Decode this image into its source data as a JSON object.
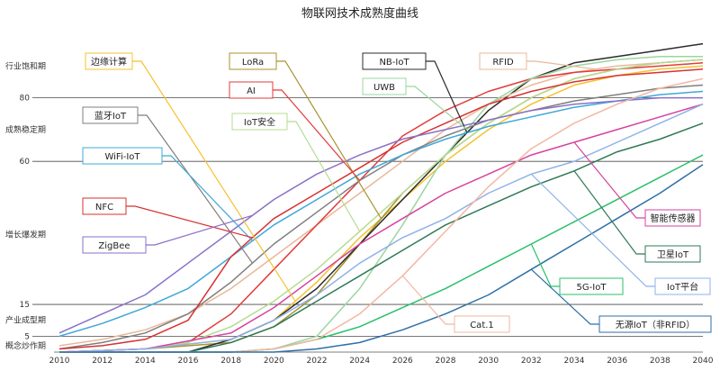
{
  "chart_data": {
    "type": "line",
    "title": "物联网技术成熟度曲线",
    "x_ticks": [
      "2010",
      "2012",
      "2014",
      "2016",
      "2018",
      "2020",
      "2022",
      "2024",
      "2026",
      "2028",
      "2030",
      "2032",
      "2034",
      "2036",
      "2038",
      "2040"
    ],
    "xlim": [
      2010,
      2040
    ],
    "ylim": [
      0,
      100
    ],
    "y_ticks": [
      5,
      15,
      60,
      80
    ],
    "grid": "horizontal",
    "stage_labels": [
      {
        "text": "行业饱和期",
        "y": 90
      },
      {
        "text": "成熟稳定期",
        "y": 70
      },
      {
        "text": "增长爆发期",
        "y": 37
      },
      {
        "text": "产业成型期",
        "y": 10
      },
      {
        "text": "概念炒作期",
        "y": 2
      }
    ],
    "series": [
      {
        "name": "边缘计算",
        "color": "#f5c22f",
        "label_pos": "upper-left",
        "points": [
          [
            2010,
            0
          ],
          [
            2014,
            1
          ],
          [
            2018,
            4
          ],
          [
            2020,
            10
          ],
          [
            2022,
            22
          ],
          [
            2024,
            36
          ],
          [
            2026,
            48
          ],
          [
            2028,
            60
          ],
          [
            2030,
            70
          ],
          [
            2032,
            78
          ],
          [
            2034,
            84
          ],
          [
            2036,
            87
          ],
          [
            2038,
            89
          ],
          [
            2040,
            90
          ]
        ]
      },
      {
        "name": "LoRa",
        "color": "#a8922e",
        "label_pos": "upper-mid",
        "points": [
          [
            2010,
            0
          ],
          [
            2014,
            1
          ],
          [
            2018,
            3
          ],
          [
            2020,
            8
          ],
          [
            2022,
            18
          ],
          [
            2024,
            34
          ],
          [
            2026,
            50
          ],
          [
            2028,
            62
          ],
          [
            2030,
            72
          ],
          [
            2032,
            80
          ],
          [
            2034,
            86
          ],
          [
            2036,
            89
          ],
          [
            2038,
            91
          ],
          [
            2040,
            92
          ]
        ]
      },
      {
        "name": "NB-IoT",
        "color": "#2b2b2b",
        "label_pos": "upper-mid",
        "points": [
          [
            2010,
            0
          ],
          [
            2016,
            0
          ],
          [
            2018,
            4
          ],
          [
            2020,
            10
          ],
          [
            2022,
            20
          ],
          [
            2024,
            34
          ],
          [
            2026,
            48
          ],
          [
            2028,
            62
          ],
          [
            2030,
            76
          ],
          [
            2032,
            86
          ],
          [
            2034,
            91
          ],
          [
            2036,
            93
          ],
          [
            2038,
            95
          ],
          [
            2040,
            97
          ]
        ]
      },
      {
        "name": "RFID",
        "color": "#e8b89a",
        "label_pos": "upper-right",
        "points": [
          [
            2010,
            2
          ],
          [
            2012,
            4
          ],
          [
            2014,
            7
          ],
          [
            2016,
            12
          ],
          [
            2018,
            20
          ],
          [
            2020,
            30
          ],
          [
            2022,
            40
          ],
          [
            2024,
            50
          ],
          [
            2026,
            60
          ],
          [
            2028,
            70
          ],
          [
            2030,
            78
          ],
          [
            2032,
            84
          ],
          [
            2034,
            88
          ],
          [
            2036,
            90
          ],
          [
            2038,
            91
          ],
          [
            2040,
            92
          ]
        ]
      },
      {
        "name": "AI",
        "color": "#e23b3b",
        "label_pos": "upper-mid",
        "points": [
          [
            2010,
            0
          ],
          [
            2014,
            1
          ],
          [
            2016,
            3
          ],
          [
            2018,
            12
          ],
          [
            2020,
            26
          ],
          [
            2022,
            40
          ],
          [
            2024,
            54
          ],
          [
            2026,
            68
          ],
          [
            2028,
            76
          ],
          [
            2030,
            82
          ],
          [
            2032,
            86
          ],
          [
            2034,
            88
          ],
          [
            2036,
            89
          ],
          [
            2038,
            90
          ],
          [
            2040,
            91
          ]
        ]
      },
      {
        "name": "UWB",
        "color": "#9bd6a0",
        "label_pos": "upper-mid",
        "points": [
          [
            2010,
            0
          ],
          [
            2018,
            0
          ],
          [
            2020,
            1
          ],
          [
            2022,
            5
          ],
          [
            2024,
            20
          ],
          [
            2026,
            40
          ],
          [
            2028,
            62
          ],
          [
            2030,
            78
          ],
          [
            2032,
            86
          ],
          [
            2034,
            90
          ],
          [
            2036,
            92
          ],
          [
            2038,
            93
          ],
          [
            2040,
            93
          ]
        ]
      },
      {
        "name": "蓝牙IoT",
        "color": "#7f7f7f",
        "label_pos": "left",
        "points": [
          [
            2010,
            1
          ],
          [
            2012,
            3
          ],
          [
            2014,
            6
          ],
          [
            2016,
            12
          ],
          [
            2018,
            22
          ],
          [
            2020,
            34
          ],
          [
            2022,
            44
          ],
          [
            2024,
            54
          ],
          [
            2026,
            62
          ],
          [
            2028,
            68
          ],
          [
            2030,
            73
          ],
          [
            2032,
            76
          ],
          [
            2034,
            79
          ],
          [
            2036,
            81
          ],
          [
            2038,
            83
          ],
          [
            2040,
            84
          ]
        ]
      },
      {
        "name": "IoT安全",
        "color": "#b5dc92",
        "label_pos": "upper-mid",
        "points": [
          [
            2010,
            0
          ],
          [
            2014,
            1
          ],
          [
            2016,
            3
          ],
          [
            2018,
            8
          ],
          [
            2020,
            16
          ],
          [
            2022,
            26
          ],
          [
            2024,
            38
          ],
          [
            2026,
            50
          ],
          [
            2028,
            62
          ],
          [
            2030,
            72
          ],
          [
            2032,
            80
          ],
          [
            2034,
            86
          ],
          [
            2036,
            89
          ],
          [
            2038,
            91
          ],
          [
            2040,
            92
          ]
        ]
      },
      {
        "name": "WiFi-IoT",
        "color": "#3fa8d8",
        "label_pos": "left",
        "points": [
          [
            2010,
            5
          ],
          [
            2012,
            9
          ],
          [
            2014,
            14
          ],
          [
            2016,
            20
          ],
          [
            2018,
            30
          ],
          [
            2020,
            40
          ],
          [
            2022,
            48
          ],
          [
            2024,
            56
          ],
          [
            2026,
            62
          ],
          [
            2028,
            67
          ],
          [
            2030,
            71
          ],
          [
            2032,
            74
          ],
          [
            2034,
            77
          ],
          [
            2036,
            79
          ],
          [
            2038,
            81
          ],
          [
            2040,
            82
          ]
        ]
      },
      {
        "name": "NFC",
        "color": "#d83232",
        "label_pos": "left",
        "points": [
          [
            2010,
            1
          ],
          [
            2012,
            2
          ],
          [
            2014,
            4
          ],
          [
            2016,
            10
          ],
          [
            2018,
            30
          ],
          [
            2020,
            42
          ],
          [
            2022,
            50
          ],
          [
            2024,
            58
          ],
          [
            2026,
            66
          ],
          [
            2028,
            72
          ],
          [
            2030,
            78
          ],
          [
            2032,
            82
          ],
          [
            2034,
            85
          ],
          [
            2036,
            87
          ],
          [
            2038,
            88
          ],
          [
            2040,
            89
          ]
        ]
      },
      {
        "name": "ZigBee",
        "color": "#8a70c8",
        "label_pos": "left",
        "points": [
          [
            2010,
            6
          ],
          [
            2012,
            12
          ],
          [
            2014,
            18
          ],
          [
            2016,
            28
          ],
          [
            2018,
            38
          ],
          [
            2020,
            48
          ],
          [
            2022,
            56
          ],
          [
            2024,
            62
          ],
          [
            2026,
            67
          ],
          [
            2028,
            70
          ],
          [
            2030,
            73
          ],
          [
            2032,
            76
          ],
          [
            2034,
            78
          ],
          [
            2036,
            79
          ],
          [
            2038,
            80
          ],
          [
            2040,
            80
          ]
        ]
      },
      {
        "name": "智能传感器",
        "color": "#d6439d",
        "label_pos": "right",
        "points": [
          [
            2010,
            0
          ],
          [
            2014,
            1
          ],
          [
            2018,
            6
          ],
          [
            2020,
            14
          ],
          [
            2022,
            24
          ],
          [
            2024,
            34
          ],
          [
            2026,
            42
          ],
          [
            2028,
            50
          ],
          [
            2030,
            56
          ],
          [
            2032,
            62
          ],
          [
            2034,
            66
          ],
          [
            2036,
            70
          ],
          [
            2038,
            74
          ],
          [
            2040,
            78
          ]
        ]
      },
      {
        "name": "卫星IoT",
        "color": "#2f7a57",
        "label_pos": "right",
        "points": [
          [
            2010,
            0
          ],
          [
            2016,
            0
          ],
          [
            2018,
            3
          ],
          [
            2020,
            8
          ],
          [
            2022,
            16
          ],
          [
            2024,
            24
          ],
          [
            2026,
            32
          ],
          [
            2028,
            40
          ],
          [
            2030,
            46
          ],
          [
            2032,
            52
          ],
          [
            2034,
            57
          ],
          [
            2036,
            63
          ],
          [
            2038,
            67
          ],
          [
            2040,
            72
          ]
        ]
      },
      {
        "name": "5G-IoT",
        "color": "#2bbf6a",
        "label_pos": "right",
        "points": [
          [
            2010,
            0
          ],
          [
            2018,
            0
          ],
          [
            2020,
            1
          ],
          [
            2022,
            4
          ],
          [
            2024,
            8
          ],
          [
            2026,
            14
          ],
          [
            2028,
            20
          ],
          [
            2030,
            27
          ],
          [
            2032,
            34
          ],
          [
            2034,
            41
          ],
          [
            2036,
            48
          ],
          [
            2038,
            55
          ],
          [
            2040,
            62
          ]
        ]
      },
      {
        "name": "IoT平台",
        "color": "#8fb2e8",
        "label_pos": "right",
        "points": [
          [
            2010,
            0
          ],
          [
            2014,
            1
          ],
          [
            2018,
            4
          ],
          [
            2020,
            10
          ],
          [
            2022,
            18
          ],
          [
            2024,
            28
          ],
          [
            2026,
            36
          ],
          [
            2028,
            42
          ],
          [
            2030,
            50
          ],
          [
            2032,
            56
          ],
          [
            2034,
            60
          ],
          [
            2036,
            66
          ],
          [
            2038,
            72
          ],
          [
            2040,
            78
          ]
        ]
      },
      {
        "name": "Cat.1",
        "color": "#f2b7a3",
        "label_pos": "right",
        "points": [
          [
            2010,
            0
          ],
          [
            2018,
            0
          ],
          [
            2020,
            1
          ],
          [
            2022,
            4
          ],
          [
            2024,
            12
          ],
          [
            2026,
            24
          ],
          [
            2028,
            38
          ],
          [
            2030,
            52
          ],
          [
            2032,
            64
          ],
          [
            2034,
            72
          ],
          [
            2036,
            78
          ],
          [
            2038,
            83
          ],
          [
            2040,
            86
          ]
        ]
      },
      {
        "name": "无源IoT（非RFID）",
        "color": "#2e6fa6",
        "label_pos": "right",
        "points": [
          [
            2010,
            0
          ],
          [
            2020,
            0
          ],
          [
            2022,
            1
          ],
          [
            2024,
            3
          ],
          [
            2026,
            7
          ],
          [
            2028,
            12
          ],
          [
            2030,
            18
          ],
          [
            2032,
            26
          ],
          [
            2034,
            34
          ],
          [
            2036,
            42
          ],
          [
            2038,
            50
          ],
          [
            2040,
            59
          ]
        ]
      }
    ]
  }
}
